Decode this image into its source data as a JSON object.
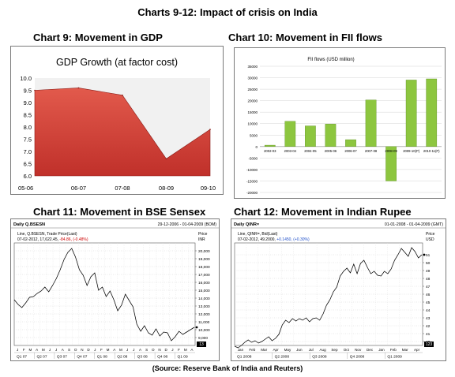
{
  "page": {
    "title": "Charts 9-12: Impact of crisis on India",
    "source": "(Source: Reserve Bank of India and Reuters)"
  },
  "headings": {
    "c9": "Chart 9:  Movement in GDP",
    "c10": "Chart 10:  Movement in FII flows",
    "c11": "Chart 11:  Movement in BSE Sensex",
    "c12": "Chart 12:  Movement in Indian Rupee"
  },
  "chart_data": [
    {
      "type": "area",
      "title": "GDP Growth (at factor cost)",
      "categories": [
        "05-06",
        "06-07",
        "07-08",
        "08-09",
        "09-10"
      ],
      "values": [
        9.5,
        9.6,
        9.3,
        6.7,
        7.9
      ],
      "ylim": [
        6.0,
        10.0
      ],
      "yticks": [
        "10.0",
        "9.5",
        "9.0",
        "8.5",
        "8.0",
        "7.5",
        "7.0",
        "6.5",
        "6.0"
      ],
      "colors": {
        "fill": "#c0302a",
        "fill_light": "#e25a4c",
        "plot_bg": "#f1f1f1"
      },
      "grid": false
    },
    {
      "type": "bar",
      "title": "FII flows (USD million)",
      "categories": [
        "2002-03",
        "2003-04",
        "2004-05",
        "2005-06",
        "2006-07",
        "2007-08",
        "2008-09",
        "2009-10(P)",
        "2010-11(P)"
      ],
      "values": [
        600,
        11000,
        9000,
        9800,
        3000,
        20300,
        -15000,
        29000,
        29500
      ],
      "ylim": [
        -20000,
        35000
      ],
      "yticks": [
        "35000",
        "30000",
        "25000",
        "20000",
        "15000",
        "10000",
        "5000",
        "0",
        "-5000",
        "-10000",
        "-15000",
        "-20000"
      ],
      "colors": {
        "bar": "#8dc63f",
        "bar_edge": "#5e8f22"
      },
      "grid": true
    },
    {
      "type": "line",
      "header_left": "Daily Q.BSESN",
      "header_right": "29-12-2006 - 01-04-2009 (BOM)",
      "info_line1": "Line, Q.BSESN, Trade Price(Last)",
      "info_line2_prefix": "07-02-2012, 17,622.45,",
      "info_line2_change": "-84.86, (-0.48%)",
      "price_label": "Price",
      "unit_label": "INR",
      "ylim": [
        8000,
        21000
      ],
      "yticks": [
        "20,000",
        "19,000",
        "18,000",
        "17,000",
        "16,000",
        "15,000",
        "14,000",
        "13,000",
        "12,000",
        "11,000",
        "10,000",
        "9,000"
      ],
      "last_value_label": "13",
      "month_labels": [
        "J",
        "F",
        "M",
        "A",
        "M",
        "J",
        "J",
        "A",
        "S",
        "O",
        "N",
        "D",
        "J",
        "F",
        "M",
        "A",
        "M",
        "J",
        "J",
        "A",
        "S",
        "O",
        "N",
        "D",
        "J",
        "F",
        "M",
        "A"
      ],
      "quarter_labels": [
        "Q1 07",
        "Q2 07",
        "Q3 07",
        "Q4 07",
        "Q1 08",
        "Q2 08",
        "Q3 08",
        "Q4 08",
        "Q1 09"
      ],
      "y": [
        13800,
        13200,
        12800,
        13400,
        14100,
        14200,
        14600,
        14900,
        15400,
        14800,
        15600,
        16500,
        17600,
        18900,
        19800,
        20300,
        19200,
        17600,
        16900,
        15600,
        16700,
        17200,
        15000,
        15400,
        14200,
        14900,
        13800,
        12400,
        13100,
        14500,
        13700,
        12900,
        10700,
        9800,
        10500,
        9600,
        9300,
        10100,
        9200,
        9700,
        9600,
        8600,
        9100,
        9800,
        9400,
        9700,
        10000,
        10300
      ],
      "colors": {
        "line": "#000000",
        "change": "#cc0000"
      }
    },
    {
      "type": "line",
      "header_left": "Daily QINR=",
      "header_right": "01-01-2008 - 01-04-2009 (GMT)",
      "info_line1": "Line, QINR=, Bid(Last)",
      "info_line2_prefix": "07-02-2012, 49.2000,",
      "info_line2_change": "+0.1450, (+0.30%)",
      "price_label": "Price",
      "unit_label": "USD",
      "ylim": [
        39.5,
        52.5
      ],
      "yticks": [
        "51",
        "50",
        "49",
        "48",
        "47",
        "46",
        "45",
        "44",
        "43",
        "42",
        "41",
        "40"
      ],
      "last_value_label": "123",
      "month_labels": [
        "Jan",
        "Feb",
        "Mar",
        "Apr",
        "May",
        "Jun",
        "Jul",
        "Aug",
        "Sep",
        "Oct",
        "Nov",
        "Dec",
        "Jan",
        "Feb",
        "Mar",
        "Apr"
      ],
      "quarter_labels": [
        "Q1 2008",
        "Q2 2008",
        "Q3 2008",
        "Q4 2008",
        "Q1 2009"
      ],
      "y": [
        39.4,
        39.2,
        39.5,
        39.9,
        40.2,
        39.9,
        40.1,
        39.8,
        40.0,
        40.3,
        40.6,
        40.1,
        40.4,
        40.9,
        42.1,
        42.7,
        42.4,
        42.9,
        42.6,
        42.9,
        42.7,
        43.0,
        42.5,
        42.9,
        43.0,
        42.7,
        43.5,
        44.6,
        45.3,
        46.3,
        46.9,
        48.3,
        48.9,
        49.3,
        48.7,
        49.8,
        48.6,
        49.9,
        50.3,
        49.4,
        48.6,
        48.9,
        48.4,
        48.3,
        48.9,
        48.6,
        49.2,
        50.3,
        51.0,
        51.8,
        51.3,
        50.8,
        51.9,
        51.4,
        50.6,
        51.0
      ],
      "colors": {
        "line": "#000000",
        "change": "#1f4fc9"
      }
    }
  ]
}
